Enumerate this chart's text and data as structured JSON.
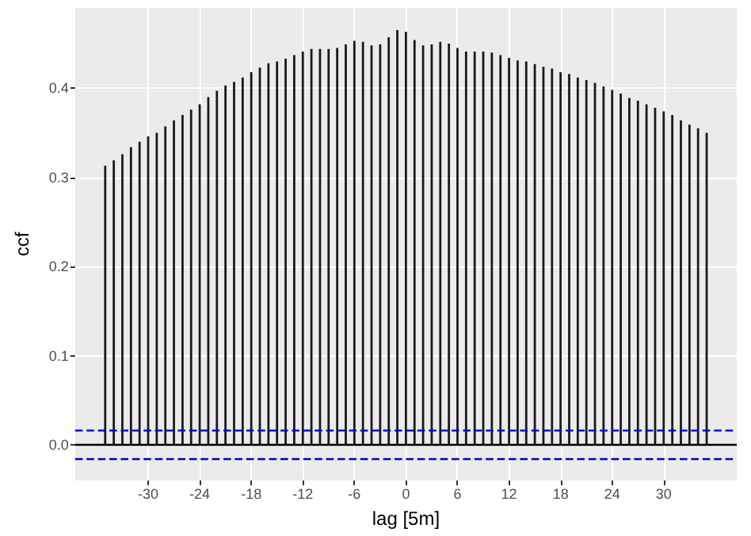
{
  "chart_data": {
    "type": "bar",
    "xlabel": "lag [5m]",
    "ylabel": "ccf",
    "x": [
      -35,
      -34,
      -33,
      -32,
      -31,
      -30,
      -29,
      -28,
      -27,
      -26,
      -25,
      -24,
      -23,
      -22,
      -21,
      -20,
      -19,
      -18,
      -17,
      -16,
      -15,
      -14,
      -13,
      -12,
      -11,
      -10,
      -9,
      -8,
      -7,
      -6,
      -5,
      -4,
      -3,
      -2,
      -1,
      0,
      1,
      2,
      3,
      4,
      5,
      6,
      7,
      8,
      9,
      10,
      11,
      12,
      13,
      14,
      15,
      16,
      17,
      18,
      19,
      20,
      21,
      22,
      23,
      24,
      25,
      26,
      27,
      28,
      29,
      30,
      31,
      32,
      33,
      34,
      35
    ],
    "series": [
      {
        "color": "#1a1a1a",
        "values": [
          0.313,
          0.319,
          0.326,
          0.334,
          0.34,
          0.346,
          0.35,
          0.357,
          0.364,
          0.37,
          0.376,
          0.382,
          0.39,
          0.397,
          0.403,
          0.407,
          0.412,
          0.418,
          0.423,
          0.428,
          0.43,
          0.433,
          0.437,
          0.441,
          0.444,
          0.444,
          0.444,
          0.445,
          0.449,
          0.453,
          0.452,
          0.448,
          0.449,
          0.457,
          0.465,
          0.463,
          0.454,
          0.448,
          0.449,
          0.452,
          0.45,
          0.445,
          0.441,
          0.441,
          0.441,
          0.44,
          0.437,
          0.434,
          0.431,
          0.43,
          0.427,
          0.424,
          0.422,
          0.418,
          0.416,
          0.412,
          0.409,
          0.406,
          0.402,
          0.398,
          0.394,
          0.389,
          0.386,
          0.382,
          0.378,
          0.374,
          0.37,
          0.364,
          0.359,
          0.355,
          0.35
        ]
      }
    ],
    "xlim": [
      -38.5,
      38.5
    ],
    "xticks": [
      -30,
      -24,
      -18,
      -12,
      -6,
      0,
      6,
      12,
      18,
      24,
      30
    ],
    "ylim": [
      -0.04,
      0.49
    ],
    "yticks": [
      {
        "value": 0,
        "label": "0.0"
      },
      {
        "value": 0.1,
        "label": "0.1"
      },
      {
        "value": 0.2,
        "label": "0.2"
      },
      {
        "value": 0.3,
        "label": "0.3"
      },
      {
        "value": 0.4,
        "label": "0.4"
      }
    ],
    "ref_lines": [
      {
        "axis": "y",
        "value": 0,
        "color": "#000000",
        "line_style": "solid"
      },
      {
        "axis": "y",
        "value": 0.016,
        "color": "#0000cc",
        "line_style": "dashed"
      },
      {
        "axis": "y",
        "value": -0.016,
        "color": "#0000cc",
        "line_style": "dashed"
      }
    ],
    "grid": true
  }
}
